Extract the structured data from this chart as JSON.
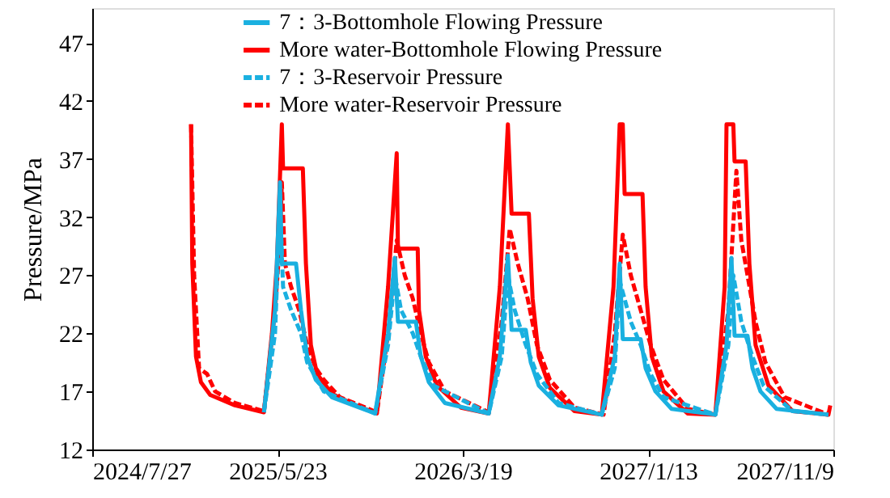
{
  "chart_data": {
    "type": "line",
    "ylabel": "Pressure/MPa",
    "xlim": [
      "2024-07-27",
      "2027-11-09"
    ],
    "xticks": [
      {
        "value": "2024-07-27",
        "label": "2024/7/27"
      },
      {
        "value": "2025-05-23",
        "label": "2025/5/23"
      },
      {
        "value": "2026-03-19",
        "label": "2026/3/19"
      },
      {
        "value": "2027-01-13",
        "label": "2027/1/13"
      },
      {
        "value": "2027-11-09",
        "label": "2027/11/9"
      }
    ],
    "ylim": [
      12,
      50
    ],
    "yticks": [
      12,
      17,
      22,
      27,
      32,
      37,
      42,
      47
    ],
    "grid": false,
    "legend": "top",
    "marker": "none",
    "series": [
      {
        "name": "7：3-Bottomhole Flowing Pressure",
        "color": "#1ab0e0",
        "line_style": "solid",
        "x": [
          "2025-05-01",
          "2025-05-19",
          "2025-05-27",
          "2025-05-30",
          "2025-06-22",
          "2025-06-30",
          "2025-07-10",
          "2025-07-24",
          "2025-08-19",
          "2025-10-28",
          "2025-11-18",
          "2025-11-29",
          "2025-12-04",
          "2026-01-02",
          "2026-01-10",
          "2026-01-23",
          "2026-02-18",
          "2026-04-30",
          "2026-05-18",
          "2026-05-31",
          "2026-06-06",
          "2026-06-29",
          "2026-07-07",
          "2026-07-20",
          "2026-08-21",
          "2026-10-30",
          "2026-11-20",
          "2026-11-28",
          "2026-12-03",
          "2027-01-01",
          "2027-01-09",
          "2027-01-25",
          "2027-02-20",
          "2027-05-02",
          "2027-05-20",
          "2027-05-28",
          "2027-06-02",
          "2027-06-23",
          "2027-07-01",
          "2027-07-14",
          "2027-08-09",
          "2027-11-01"
        ],
        "values": [
          15.2,
          24,
          35,
          28,
          28,
          24,
          20,
          18,
          16.5,
          15.1,
          22,
          28.5,
          23,
          23,
          20,
          17.8,
          16,
          15.1,
          20,
          28.7,
          22.3,
          22.3,
          19.5,
          17.5,
          15.8,
          15,
          20,
          28,
          21.5,
          21.5,
          19,
          17,
          15.5,
          15,
          21,
          28.5,
          21.8,
          21.8,
          19,
          17,
          15.5,
          15
        ]
      },
      {
        "name": "More water-Bottomhole Flowing Pressure",
        "color": "#ff0000",
        "line_style": "solid",
        "x": [
          "2025-01-03",
          "2025-01-05",
          "2025-01-11",
          "2025-01-19",
          "2025-02-03",
          "2025-03-15",
          "2025-05-01",
          "2025-05-14",
          "2025-05-22",
          "2025-05-30",
          "2025-06-01",
          "2025-07-03",
          "2025-07-08",
          "2025-07-16",
          "2025-07-26",
          "2025-08-19",
          "2025-09-27",
          "2025-10-31",
          "2025-11-18",
          "2025-12-02",
          "2025-12-04",
          "2026-01-05",
          "2026-01-07",
          "2026-01-18",
          "2026-02-05",
          "2026-03-16",
          "2026-04-30",
          "2026-05-18",
          "2026-05-31",
          "2026-06-06",
          "2026-07-04",
          "2026-07-10",
          "2026-07-20",
          "2026-08-07",
          "2026-09-16",
          "2026-10-30",
          "2026-11-18",
          "2026-11-28",
          "2026-12-03",
          "2026-12-06",
          "2027-01-04",
          "2027-01-09",
          "2027-01-19",
          "2027-02-07",
          "2027-03-18",
          "2027-05-02",
          "2027-05-17",
          "2027-05-20",
          "2027-05-31",
          "2027-06-02",
          "2027-06-20",
          "2027-06-26",
          "2027-07-06",
          "2027-07-27",
          "2027-09-04",
          "2027-11-01",
          "2027-11-04"
        ],
        "values": [
          40,
          28,
          20,
          17.8,
          16.7,
          15.8,
          15.2,
          22,
          28,
          40,
          36.2,
          36.2,
          28,
          21,
          18.5,
          16.8,
          15.8,
          15.1,
          26,
          37.5,
          29.3,
          29.3,
          24,
          20,
          17.5,
          15.6,
          15.1,
          26,
          40,
          32.3,
          32.3,
          25,
          20,
          17.3,
          15.3,
          15,
          26,
          40,
          40,
          34,
          34,
          26,
          20,
          17,
          15.1,
          15,
          26,
          40,
          40,
          36.8,
          36.8,
          28,
          21,
          17.5,
          15.3,
          15,
          15.8
        ]
      },
      {
        "name": "7：3-Reservoir Pressure",
        "color": "#1ab0e0",
        "line_style": "dashed",
        "x": [
          "2025-05-01",
          "2025-05-19",
          "2025-05-27",
          "2025-06-01",
          "2025-06-14",
          "2025-06-30",
          "2025-07-10",
          "2025-08-06",
          "2025-10-28",
          "2025-11-18",
          "2025-11-29",
          "2025-12-09",
          "2025-12-28",
          "2026-01-10",
          "2026-01-31",
          "2026-04-30",
          "2026-05-21",
          "2026-05-31",
          "2026-06-11",
          "2026-06-29",
          "2026-07-17",
          "2026-08-21",
          "2026-10-30",
          "2026-11-20",
          "2026-11-28",
          "2026-12-16",
          "2027-01-01",
          "2027-01-17",
          "2027-02-07",
          "2027-05-02",
          "2027-05-23",
          "2027-05-31",
          "2027-06-13",
          "2027-07-01",
          "2027-07-19",
          "2027-09-04",
          "2027-11-01"
        ],
        "values": [
          15.2,
          22,
          33,
          26,
          24,
          22,
          19.5,
          17,
          15.1,
          21,
          27,
          24,
          22,
          20,
          17.5,
          15.1,
          20,
          27,
          24,
          21,
          18.5,
          16,
          15,
          19,
          26.5,
          23,
          21,
          18.5,
          16.5,
          15,
          21,
          27,
          23,
          20,
          17.5,
          15.3,
          15
        ]
      },
      {
        "name": "More water-Reservoir Pressure",
        "color": "#ff0000",
        "line_style": "dashed",
        "x": [
          "2025-01-03",
          "2025-01-08",
          "2025-01-16",
          "2025-01-29",
          "2025-02-11",
          "2025-03-15",
          "2025-05-01",
          "2025-05-19",
          "2025-05-27",
          "2025-05-30",
          "2025-06-04",
          "2025-06-14",
          "2025-06-27",
          "2025-07-10",
          "2025-07-24",
          "2025-08-06",
          "2025-09-01",
          "2025-10-31",
          "2025-11-18",
          "2025-12-02",
          "2025-12-15",
          "2025-12-28",
          "2026-01-10",
          "2026-01-23",
          "2026-02-18",
          "2026-04-30",
          "2026-05-21",
          "2026-06-03",
          "2026-06-16",
          "2026-07-02",
          "2026-07-17",
          "2026-08-07",
          "2026-09-16",
          "2026-11-02",
          "2026-11-20",
          "2026-12-03",
          "2026-12-16",
          "2027-01-01",
          "2027-01-17",
          "2027-02-07",
          "2027-03-18",
          "2027-05-02",
          "2027-05-23",
          "2027-06-05",
          "2027-06-13",
          "2027-06-23",
          "2027-07-06",
          "2027-07-22",
          "2027-08-22",
          "2027-11-01"
        ],
        "values": [
          40,
          27,
          19,
          18.5,
          17,
          16,
          15.3,
          24,
          30,
          35,
          28,
          26,
          24,
          21,
          19,
          18,
          16.5,
          15.2,
          22,
          30,
          27,
          25,
          22,
          19.5,
          17,
          15.2,
          23,
          31,
          28,
          25,
          21,
          18,
          15.6,
          15,
          22,
          30.5,
          27,
          24,
          21,
          18,
          15.5,
          15,
          24,
          36,
          30,
          27,
          23,
          19.5,
          16.5,
          15
        ]
      }
    ]
  }
}
